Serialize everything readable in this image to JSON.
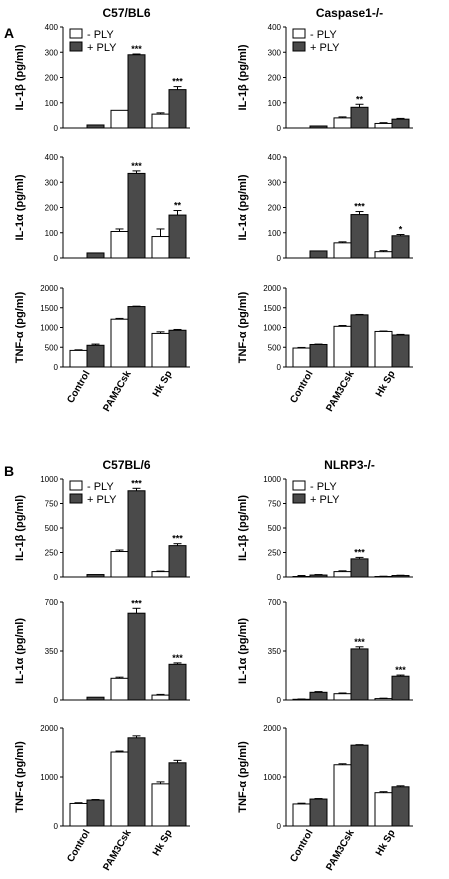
{
  "panel_labels": [
    "A",
    "B"
  ],
  "legend_labels": [
    "- PLY",
    "+ PLY"
  ],
  "colors": {
    "minus_ply": "#ffffff",
    "plus_ply": "#4a4a4a"
  },
  "chart_data": [
    {
      "panel": "A",
      "title": "C57/BL6",
      "type": "bar",
      "ylabel": "IL-1β (pg/ml)",
      "ylim": [
        0,
        400
      ],
      "yticks": [
        0,
        100,
        200,
        300,
        400
      ],
      "categories": [
        "Control",
        "PAM3Csk",
        "Hk Sp"
      ],
      "legend": "top-left",
      "series": [
        {
          "name": "- PLY",
          "values": [
            0,
            70,
            55
          ],
          "errors": [
            0,
            0,
            5
          ]
        },
        {
          "name": "+ PLY",
          "values": [
            12,
            290,
            152
          ],
          "errors": [
            0,
            3,
            12
          ]
        }
      ],
      "annotations": [
        "",
        "***",
        "***"
      ]
    },
    {
      "panel": "A",
      "title": "Caspase1-/-",
      "type": "bar",
      "ylabel": "IL-1β (pg/ml)",
      "ylim": [
        0,
        400
      ],
      "yticks": [
        0,
        100,
        200,
        300,
        400
      ],
      "categories": [
        "Control",
        "PAM3Csk",
        "Hk Sp"
      ],
      "legend": "top-left",
      "series": [
        {
          "name": "- PLY",
          "values": [
            0,
            40,
            18
          ],
          "errors": [
            0,
            4,
            3
          ]
        },
        {
          "name": "+ PLY",
          "values": [
            8,
            82,
            35
          ],
          "errors": [
            0,
            12,
            3
          ]
        }
      ],
      "annotations": [
        "",
        "**",
        ""
      ]
    },
    {
      "panel": "A",
      "title": "",
      "type": "bar",
      "ylabel": "IL-1α (pg/ml)",
      "ylim": [
        0,
        400
      ],
      "yticks": [
        0,
        100,
        200,
        300,
        400
      ],
      "categories": [
        "Control",
        "PAM3Csk",
        "Hk Sp"
      ],
      "legend": "none",
      "series": [
        {
          "name": "- PLY",
          "values": [
            0,
            105,
            85
          ],
          "errors": [
            0,
            10,
            30
          ]
        },
        {
          "name": "+ PLY",
          "values": [
            20,
            335,
            170
          ],
          "errors": [
            0,
            10,
            18
          ]
        }
      ],
      "annotations": [
        "",
        "***",
        "**"
      ]
    },
    {
      "panel": "A",
      "title": "",
      "type": "bar",
      "ylabel": "IL-1α (pg/ml)",
      "ylim": [
        0,
        400
      ],
      "yticks": [
        0,
        100,
        200,
        300,
        400
      ],
      "categories": [
        "Control",
        "PAM3Csk",
        "Hk Sp"
      ],
      "legend": "none",
      "series": [
        {
          "name": "- PLY",
          "values": [
            0,
            60,
            25
          ],
          "errors": [
            0,
            4,
            4
          ]
        },
        {
          "name": "+ PLY",
          "values": [
            28,
            172,
            88
          ],
          "errors": [
            0,
            12,
            5
          ]
        }
      ],
      "annotations": [
        "",
        "***",
        "*"
      ]
    },
    {
      "panel": "A",
      "title": "",
      "type": "bar",
      "ylabel": "TNF-α (pg/ml)",
      "ylim": [
        0,
        2000
      ],
      "yticks": [
        0,
        500,
        1000,
        1500,
        2000
      ],
      "categories": [
        "Control",
        "PAM3Csk",
        "Hk Sp"
      ],
      "legend": "none",
      "series": [
        {
          "name": "- PLY",
          "values": [
            420,
            1210,
            850
          ],
          "errors": [
            15,
            20,
            40
          ]
        },
        {
          "name": "+ PLY",
          "values": [
            550,
            1530,
            930
          ],
          "errors": [
            30,
            10,
            20
          ]
        }
      ],
      "annotations": [
        "",
        "",
        ""
      ]
    },
    {
      "panel": "A",
      "title": "",
      "type": "bar",
      "ylabel": "TNF-α (pg/ml)",
      "ylim": [
        0,
        2000
      ],
      "yticks": [
        0,
        500,
        1000,
        1500,
        2000
      ],
      "categories": [
        "Control",
        "PAM3Csk",
        "Hk Sp"
      ],
      "legend": "none",
      "series": [
        {
          "name": "- PLY",
          "values": [
            480,
            1030,
            900
          ],
          "errors": [
            15,
            20,
            10
          ]
        },
        {
          "name": "+ PLY",
          "values": [
            570,
            1320,
            810
          ],
          "errors": [
            10,
            10,
            15
          ]
        }
      ],
      "annotations": [
        "",
        "",
        ""
      ]
    },
    {
      "panel": "B",
      "title": "C57BL/6",
      "type": "bar",
      "ylabel": "IL-1β (pg/ml)",
      "ylim": [
        0,
        1000
      ],
      "yticks": [
        0,
        250,
        500,
        750,
        1000
      ],
      "categories": [
        "Control",
        "PAM3Csk",
        "Hk Sp"
      ],
      "legend": "top-left",
      "series": [
        {
          "name": "- PLY",
          "values": [
            0,
            260,
            55
          ],
          "errors": [
            0,
            15,
            5
          ]
        },
        {
          "name": "+ PLY",
          "values": [
            25,
            880,
            320
          ],
          "errors": [
            0,
            25,
            20
          ]
        }
      ],
      "annotations": [
        "",
        "***",
        "***"
      ]
    },
    {
      "panel": "B",
      "title": "NLRP3-/-",
      "type": "bar",
      "ylabel": "IL-1β (pg/ml)",
      "ylim": [
        0,
        1000
      ],
      "yticks": [
        0,
        250,
        500,
        750,
        1000
      ],
      "categories": [
        "Control",
        "PAM3Csk",
        "Hk Sp"
      ],
      "legend": "top-left",
      "series": [
        {
          "name": "- PLY",
          "values": [
            5,
            55,
            5
          ],
          "errors": [
            10,
            8,
            3
          ]
        },
        {
          "name": "+ PLY",
          "values": [
            20,
            185,
            15
          ],
          "errors": [
            5,
            15,
            3
          ]
        }
      ],
      "annotations": [
        "",
        "***",
        ""
      ]
    },
    {
      "panel": "B",
      "title": "",
      "type": "bar",
      "ylabel": "IL-1α (pg/ml)",
      "ylim": [
        0,
        700
      ],
      "yticks": [
        0,
        350,
        700
      ],
      "categories": [
        "Control",
        "PAM3Csk",
        "Hk Sp"
      ],
      "legend": "none",
      "series": [
        {
          "name": "- PLY",
          "values": [
            0,
            155,
            35
          ],
          "errors": [
            0,
            8,
            5
          ]
        },
        {
          "name": "+ PLY",
          "values": [
            20,
            620,
            255
          ],
          "errors": [
            0,
            35,
            10
          ]
        }
      ],
      "annotations": [
        "",
        "***",
        "***"
      ]
    },
    {
      "panel": "B",
      "title": "",
      "type": "bar",
      "ylabel": "IL-1α (pg/ml)",
      "ylim": [
        0,
        700
      ],
      "yticks": [
        0,
        350,
        700
      ],
      "categories": [
        "Control",
        "PAM3Csk",
        "Hk Sp"
      ],
      "legend": "none",
      "series": [
        {
          "name": "- PLY",
          "values": [
            5,
            45,
            10
          ],
          "errors": [
            2,
            5,
            3
          ]
        },
        {
          "name": "+ PLY",
          "values": [
            55,
            365,
            170
          ],
          "errors": [
            5,
            15,
            8
          ]
        }
      ],
      "annotations": [
        "",
        "***",
        "***"
      ]
    },
    {
      "panel": "B",
      "title": "",
      "type": "bar",
      "ylabel": "TNF-α (pg/ml)",
      "ylim": [
        0,
        2000
      ],
      "yticks": [
        0,
        1000,
        2000
      ],
      "categories": [
        "Control",
        "PAM3Csk",
        "Hk Sp"
      ],
      "legend": "none",
      "series": [
        {
          "name": "- PLY",
          "values": [
            460,
            1510,
            860
          ],
          "errors": [
            15,
            20,
            40
          ]
        },
        {
          "name": "+ PLY",
          "values": [
            530,
            1800,
            1290
          ],
          "errors": [
            10,
            40,
            50
          ]
        }
      ],
      "annotations": [
        "",
        "",
        ""
      ]
    },
    {
      "panel": "B",
      "title": "",
      "type": "bar",
      "ylabel": "TNF-α (pg/ml)",
      "ylim": [
        0,
        2000
      ],
      "yticks": [
        0,
        1000,
        2000
      ],
      "categories": [
        "Control",
        "PAM3Csk",
        "Hk Sp"
      ],
      "legend": "none",
      "series": [
        {
          "name": "- PLY",
          "values": [
            450,
            1250,
            680
          ],
          "errors": [
            15,
            20,
            20
          ]
        },
        {
          "name": "+ PLY",
          "values": [
            550,
            1650,
            800
          ],
          "errors": [
            10,
            10,
            20
          ]
        }
      ],
      "annotations": [
        "",
        "",
        ""
      ]
    }
  ]
}
